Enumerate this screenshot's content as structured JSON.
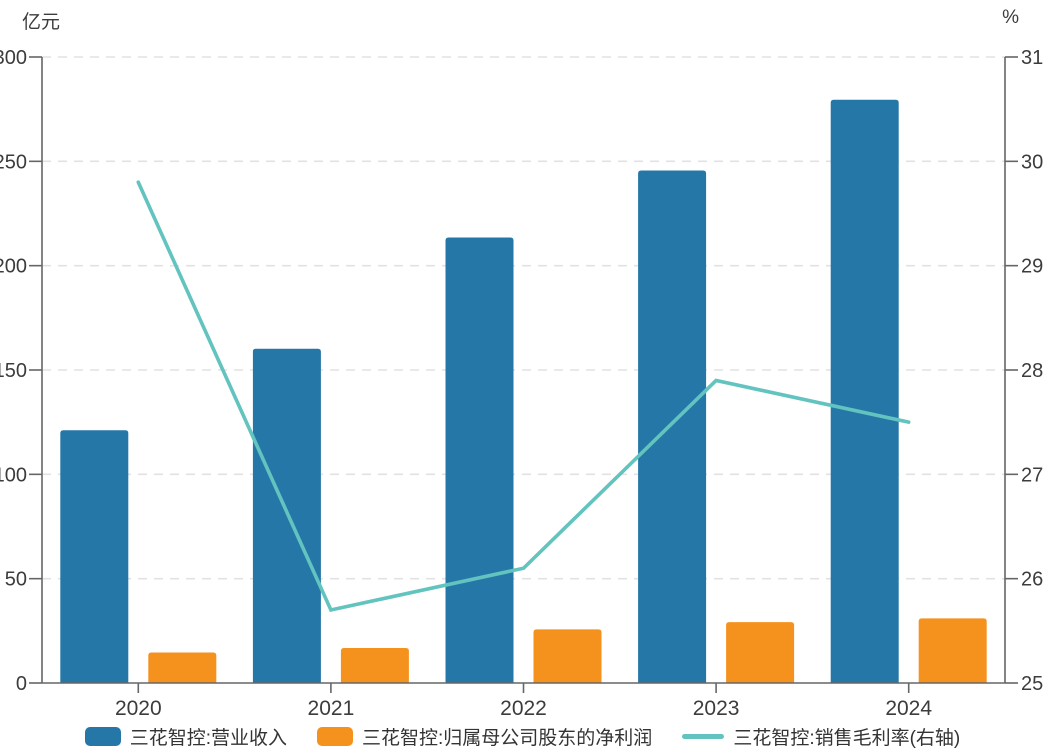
{
  "chart_data": {
    "type": "bar",
    "subtype": "grouped-bar-with-line-combo",
    "categories": [
      "2020",
      "2021",
      "2022",
      "2023",
      "2024"
    ],
    "series": [
      {
        "name": "三花智控:营业收入",
        "type": "bar",
        "axis": "left",
        "color": "#2577a8",
        "values": [
          121.1,
          160.2,
          213.5,
          245.6,
          279.5
        ]
      },
      {
        "name": "三花智控:归属母公司股东的净利润",
        "type": "bar",
        "axis": "left",
        "color": "#f5921e",
        "values": [
          14.6,
          16.8,
          25.7,
          29.2,
          31.0
        ]
      },
      {
        "name": "三花智控:销售毛利率(右轴)",
        "type": "line",
        "axis": "right",
        "color": "#62c3bf",
        "values": [
          29.8,
          25.7,
          26.1,
          27.9,
          27.5
        ]
      }
    ],
    "left_axis": {
      "label": "亿元",
      "min": 0,
      "max": 300,
      "ticks": [
        0,
        50,
        100,
        150,
        200,
        250,
        300
      ]
    },
    "right_axis": {
      "label": "%",
      "min": 25,
      "max": 31,
      "ticks": [
        25,
        26,
        27,
        28,
        29,
        30,
        31
      ]
    },
    "grid": "dashed horizontal gridlines at every tick",
    "legend_position": "bottom",
    "colors": {
      "axis_line": "#666666",
      "grid_line": "#e2e2e2",
      "tick_text": "#3c3c3c",
      "legend_text": "#333333",
      "background": "#ffffff"
    }
  }
}
